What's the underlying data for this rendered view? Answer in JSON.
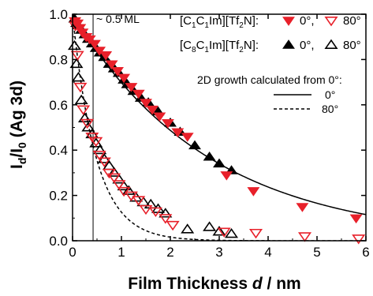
{
  "chart_data": {
    "type": "scatter",
    "xlabel_main": "Film Thickness",
    "xlabel_var": "d",
    "xlabel_unit": " / nm",
    "ylabel_parts": [
      "I",
      "d",
      "/I",
      "0",
      " (Ag 3d)"
    ],
    "xlim": [
      0,
      6
    ],
    "ylim": [
      0,
      1.0
    ],
    "xticks": [
      0,
      1,
      2,
      3,
      4,
      5,
      6
    ],
    "yticks": [
      0.0,
      0.2,
      0.4,
      0.6,
      0.8,
      1.0
    ],
    "ytick_labels": [
      "0.0",
      "0.2",
      "0.4",
      "0.6",
      "0.8",
      "1.0"
    ],
    "annotation": "~ 0.5 ML",
    "annotation_x": 0.42,
    "legend": {
      "row1": {
        "parts": [
          "[C",
          "1",
          "C",
          "1",
          "Im][Tf",
          "2",
          "N]:"
        ],
        "a0": "0°,",
        "a80": "80°"
      },
      "row2": {
        "parts": [
          "[C",
          "8",
          "C",
          "1",
          "Im][Tf",
          "2",
          "N]:"
        ],
        "a0": "0°,",
        "a80": "80°"
      },
      "calc_title": "2D growth calculated from 0°:",
      "calc_0": "0°",
      "calc_80": "80°"
    },
    "colors": {
      "c1": "#e8202a",
      "c8": "#000000"
    },
    "series": [
      {
        "name": "[C1C1Im][Tf2N] 0°",
        "marker": "triangle-down-filled",
        "color": "#e8202a",
        "x": [
          0.05,
          0.1,
          0.15,
          0.2,
          0.28,
          0.35,
          0.45,
          0.55,
          0.68,
          0.8,
          0.92,
          1.05,
          1.2,
          1.35,
          1.5,
          1.63,
          1.78,
          1.95,
          2.15,
          2.35,
          3.15,
          3.7,
          4.7,
          5.8
        ],
        "y": [
          0.97,
          0.96,
          0.94,
          0.92,
          0.9,
          0.89,
          0.87,
          0.84,
          0.82,
          0.78,
          0.75,
          0.72,
          0.68,
          0.65,
          0.61,
          0.58,
          0.55,
          0.52,
          0.48,
          0.46,
          0.29,
          0.22,
          0.15,
          0.1
        ]
      },
      {
        "name": "[C1C1Im][Tf2N] 80°",
        "marker": "triangle-down-open",
        "color": "#e8202a",
        "x": [
          0.06,
          0.1,
          0.16,
          0.22,
          0.3,
          0.4,
          0.48,
          0.55,
          0.65,
          0.75,
          0.85,
          0.95,
          1.05,
          1.2,
          1.35,
          1.5,
          1.7,
          1.9,
          2.05,
          3.1,
          3.75,
          4.75,
          5.85
        ],
        "y": [
          0.95,
          0.82,
          0.68,
          0.58,
          0.52,
          0.46,
          0.44,
          0.38,
          0.35,
          0.3,
          0.28,
          0.25,
          0.22,
          0.2,
          0.18,
          0.14,
          0.13,
          0.1,
          0.07,
          0.04,
          0.035,
          0.02,
          0.01
        ]
      },
      {
        "name": "[C8C1Im][Tf2N] 0°",
        "marker": "triangle-up-filled",
        "color": "#000000",
        "x": [
          0.04,
          0.08,
          0.12,
          0.18,
          0.25,
          0.32,
          0.4,
          0.48,
          0.56,
          0.65,
          0.75,
          0.85,
          0.95,
          1.05,
          1.12,
          1.25,
          1.4,
          1.55,
          1.75,
          2.0,
          2.2,
          2.5,
          2.8,
          3.0,
          3.25
        ],
        "y": [
          0.98,
          0.96,
          0.95,
          0.93,
          0.91,
          0.89,
          0.87,
          0.85,
          0.83,
          0.81,
          0.78,
          0.76,
          0.74,
          0.71,
          0.69,
          0.66,
          0.63,
          0.61,
          0.57,
          0.52,
          0.48,
          0.42,
          0.37,
          0.34,
          0.31
        ]
      },
      {
        "name": "[C8C1Im][Tf2N] 80°",
        "marker": "triangle-up-open",
        "color": "#000000",
        "x": [
          0.04,
          0.08,
          0.12,
          0.18,
          0.25,
          0.32,
          0.4,
          0.48,
          0.56,
          0.65,
          0.75,
          0.85,
          0.95,
          1.05,
          1.15,
          1.3,
          1.45,
          1.6,
          1.75,
          1.9,
          2.35,
          2.8,
          3.0,
          3.25
        ],
        "y": [
          0.86,
          0.78,
          0.72,
          0.62,
          0.54,
          0.5,
          0.47,
          0.43,
          0.4,
          0.36,
          0.33,
          0.3,
          0.27,
          0.24,
          0.22,
          0.19,
          0.17,
          0.16,
          0.14,
          0.12,
          0.05,
          0.06,
          0.04,
          0.03
        ]
      }
    ],
    "curves": [
      {
        "name": "2D growth 0°",
        "style": "solid",
        "decay_length": 2.78
      },
      {
        "name": "2D growth 80°",
        "style": "dashed",
        "decay_length": 0.483
      }
    ]
  }
}
